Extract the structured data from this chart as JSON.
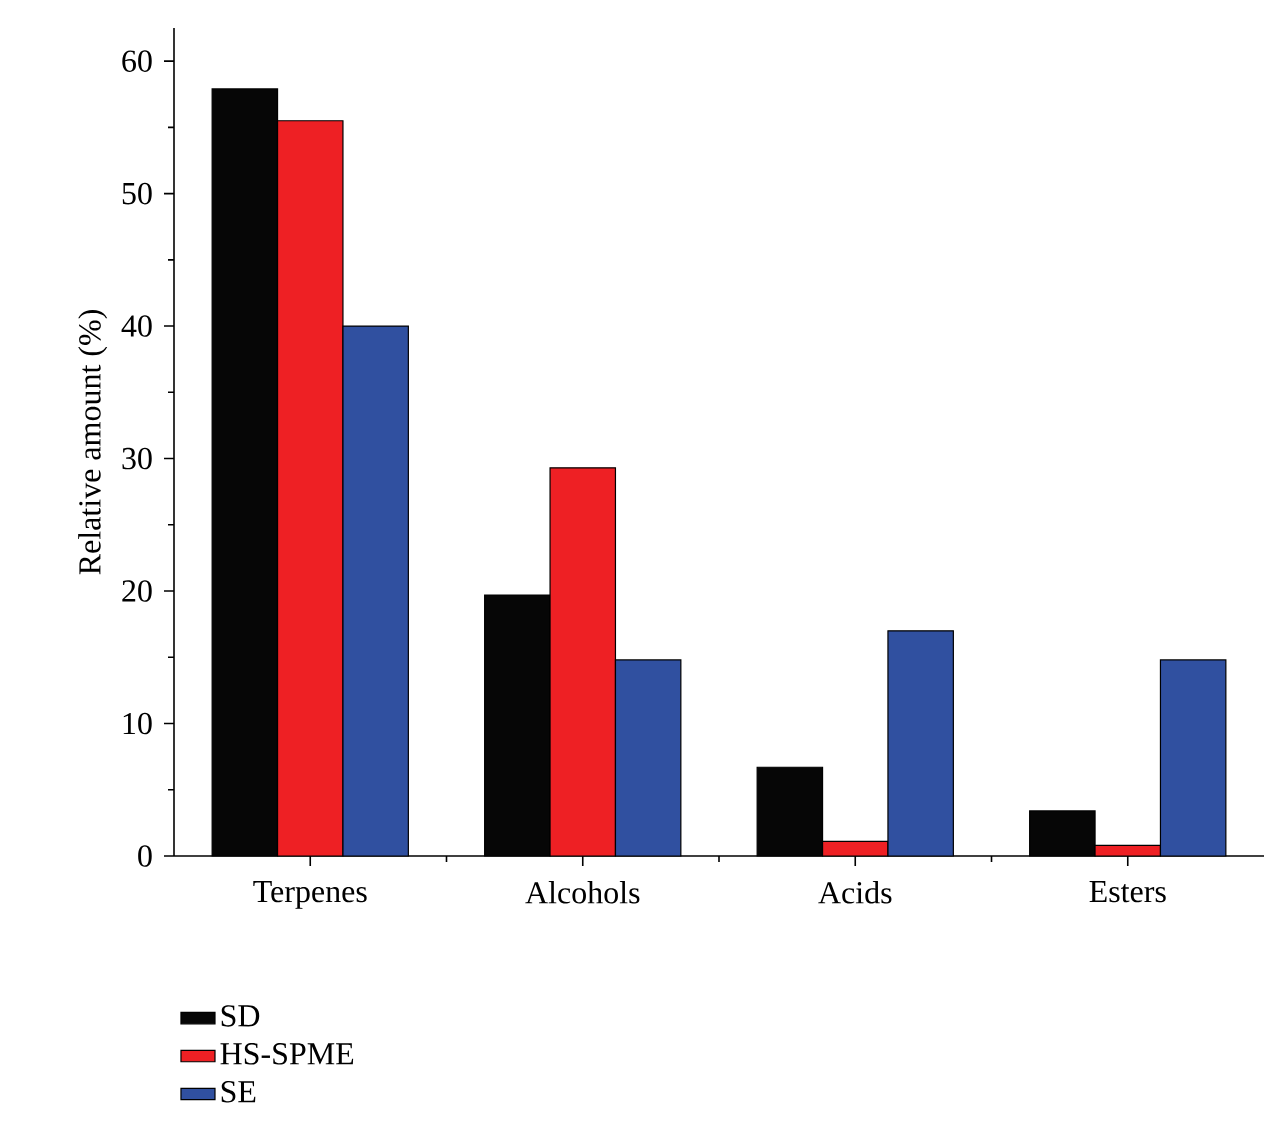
{
  "chart_data": {
    "type": "bar",
    "ylabel": "Relative amount (%)",
    "categories": [
      "Terpenes",
      "Alcohols",
      "Acids",
      "Esters"
    ],
    "series": [
      {
        "name": "SD",
        "color": "#060606",
        "values": [
          57.9,
          19.7,
          6.7,
          3.4
        ]
      },
      {
        "name": "HS-SPME",
        "color": "#ee2024",
        "values": [
          55.5,
          29.3,
          1.1,
          0.8
        ]
      },
      {
        "name": "SE",
        "color": "#3050a0",
        "values": [
          40.0,
          14.8,
          17.0,
          14.8
        ]
      }
    ],
    "ylim": [
      0,
      62.5
    ],
    "yticks": [
      0,
      10,
      20,
      30,
      40,
      50,
      60
    ],
    "legend": "bottom",
    "grid": false
  }
}
